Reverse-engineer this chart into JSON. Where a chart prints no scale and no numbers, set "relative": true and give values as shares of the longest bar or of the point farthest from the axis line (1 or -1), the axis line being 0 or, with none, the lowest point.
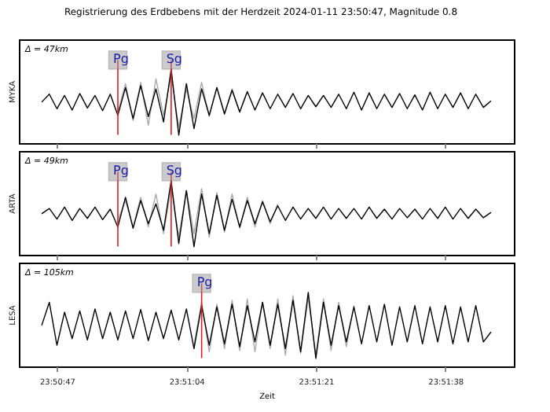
{
  "chart_data": [
    {
      "type": "line",
      "title": "Registrierung des Erdbebens mit der Herdzeit 2024-01-11 23:50:47, Magnitude 0.8",
      "ylabel": "MYKA",
      "relative": true,
      "grid": false,
      "tick_labels": false,
      "annotations": [
        "Δ = 47km"
      ],
      "xlim": [
        "2024-01-11T23:50:42",
        "2024-01-11T23:51:47"
      ],
      "xticks": [
        {
          "value": "2024-01-11T23:50:47",
          "label": null
        },
        {
          "value": "2024-01-11T23:51:04",
          "label": null
        },
        {
          "value": "2024-01-11T23:51:21",
          "label": null
        },
        {
          "value": "2024-01-11T23:51:38",
          "label": null
        }
      ],
      "ref_lines": [
        {
          "axis": "x",
          "value": "2024-01-11T23:50:55",
          "label": "Pg",
          "color": "#e41a1c"
        },
        {
          "axis": "x",
          "value": "2024-01-11T23:51:02",
          "label": "Sg",
          "color": "#e41a1c"
        }
      ],
      "series": [
        {
          "color": "#aaaaaa",
          "values": [
            null,
            null,
            null,
            null,
            null,
            null,
            null,
            null,
            null,
            null,
            0.35,
            0.78,
            0.22,
            0.8,
            0.15,
            0.85,
            0.3,
            0.9,
            0.12,
            0.7,
            0.25,
            0.8,
            0.28,
            0.72,
            0.33,
            0.7,
            0.35,
            0.66,
            null,
            null,
            null,
            null,
            null,
            null,
            null,
            null,
            null,
            null,
            null,
            null,
            null,
            null,
            null,
            null,
            null,
            null,
            null,
            null,
            null,
            null,
            null,
            null,
            null,
            null,
            null,
            null,
            null,
            null,
            null,
            null
          ]
        },
        {
          "color": "#000000",
          "values": [
            0.5,
            0.62,
            0.4,
            0.6,
            0.38,
            0.63,
            0.41,
            0.6,
            0.37,
            0.62,
            0.3,
            0.72,
            0.25,
            0.75,
            0.28,
            0.7,
            0.2,
            1.0,
            0.0,
            0.78,
            0.1,
            0.7,
            0.3,
            0.72,
            0.32,
            0.68,
            0.35,
            0.66,
            0.38,
            0.64,
            0.4,
            0.62,
            0.42,
            0.63,
            0.4,
            0.6,
            0.43,
            0.6,
            0.42,
            0.62,
            0.4,
            0.65,
            0.38,
            0.64,
            0.4,
            0.62,
            0.42,
            0.63,
            0.4,
            0.61,
            0.38,
            0.65,
            0.4,
            0.62,
            0.42,
            0.64,
            0.4,
            0.62,
            0.42,
            0.52
          ]
        }
      ],
      "x": [
        "2024-01-11T23:50:45",
        "2024-01-11T23:50:46",
        "2024-01-11T23:50:47",
        "2024-01-11T23:50:48",
        "2024-01-11T23:50:49",
        "2024-01-11T23:50:50",
        "2024-01-11T23:50:51",
        "2024-01-11T23:50:52",
        "2024-01-11T23:50:53",
        "2024-01-11T23:50:54",
        "2024-01-11T23:50:55",
        "2024-01-11T23:50:56",
        "2024-01-11T23:50:57",
        "2024-01-11T23:50:58",
        "2024-01-11T23:50:59",
        "2024-01-11T23:51:00",
        "2024-01-11T23:51:01",
        "2024-01-11T23:51:02",
        "2024-01-11T23:51:03",
        "2024-01-11T23:51:04",
        "2024-01-11T23:51:05",
        "2024-01-11T23:51:06",
        "2024-01-11T23:51:07",
        "2024-01-11T23:51:08",
        "2024-01-11T23:51:09",
        "2024-01-11T23:51:10",
        "2024-01-11T23:51:11",
        "2024-01-11T23:51:12",
        "2024-01-11T23:51:13",
        "2024-01-11T23:51:14",
        "2024-01-11T23:51:15",
        "2024-01-11T23:51:16",
        "2024-01-11T23:51:17",
        "2024-01-11T23:51:18",
        "2024-01-11T23:51:19",
        "2024-01-11T23:51:20",
        "2024-01-11T23:51:21",
        "2024-01-11T23:51:22",
        "2024-01-11T23:51:23",
        "2024-01-11T23:51:24",
        "2024-01-11T23:51:25",
        "2024-01-11T23:51:26",
        "2024-01-11T23:51:27",
        "2024-01-11T23:51:28",
        "2024-01-11T23:51:29",
        "2024-01-11T23:51:30",
        "2024-01-11T23:51:31",
        "2024-01-11T23:51:32",
        "2024-01-11T23:51:33",
        "2024-01-11T23:51:34",
        "2024-01-11T23:51:35",
        "2024-01-11T23:51:36",
        "2024-01-11T23:51:37",
        "2024-01-11T23:51:38",
        "2024-01-11T23:51:39",
        "2024-01-11T23:51:40",
        "2024-01-11T23:51:41",
        "2024-01-11T23:51:42",
        "2024-01-11T23:51:43",
        "2024-01-11T23:51:44"
      ]
    },
    {
      "type": "line",
      "ylabel": "ARTA",
      "relative": true,
      "grid": false,
      "tick_labels": false,
      "annotations": [
        "Δ = 49km"
      ],
      "xlim": [
        "2024-01-11T23:50:42",
        "2024-01-11T23:51:47"
      ],
      "xticks": [
        {
          "value": "2024-01-11T23:50:47",
          "label": null
        },
        {
          "value": "2024-01-11T23:51:04",
          "label": null
        },
        {
          "value": "2024-01-11T23:51:21",
          "label": null
        },
        {
          "value": "2024-01-11T23:51:38",
          "label": null
        }
      ],
      "ref_lines": [
        {
          "axis": "x",
          "value": "2024-01-11T23:50:55",
          "label": "Pg",
          "color": "#e41a1c"
        },
        {
          "axis": "x",
          "value": "2024-01-11T23:51:02",
          "label": "Sg",
          "color": "#e41a1c"
        }
      ],
      "series": [
        {
          "color": "#aaaaaa",
          "values": [
            null,
            null,
            null,
            null,
            null,
            null,
            null,
            null,
            null,
            null,
            0.4,
            0.7,
            0.3,
            0.75,
            0.3,
            0.8,
            0.2,
            0.9,
            0.15,
            0.85,
            0.2,
            0.88,
            0.15,
            0.82,
            0.22,
            0.8,
            0.28,
            0.75,
            0.3,
            0.7,
            0.35,
            0.65,
            null,
            null,
            null,
            null,
            null,
            null,
            null,
            null,
            null,
            null,
            null,
            null,
            null,
            null,
            null,
            null,
            null,
            null,
            null,
            null,
            null,
            null,
            null,
            null,
            null,
            null,
            null,
            null
          ]
        },
        {
          "color": "#000000",
          "values": [
            0.5,
            0.58,
            0.42,
            0.6,
            0.4,
            0.58,
            0.43,
            0.6,
            0.41,
            0.57,
            0.3,
            0.75,
            0.28,
            0.7,
            0.35,
            0.65,
            0.25,
            1.0,
            0.05,
            0.85,
            0.0,
            0.8,
            0.2,
            0.78,
            0.25,
            0.72,
            0.3,
            0.7,
            0.35,
            0.68,
            0.38,
            0.62,
            0.4,
            0.6,
            0.42,
            0.58,
            0.43,
            0.6,
            0.42,
            0.58,
            0.43,
            0.58,
            0.42,
            0.6,
            0.43,
            0.57,
            0.42,
            0.58,
            0.44,
            0.57,
            0.42,
            0.58,
            0.43,
            0.6,
            0.42,
            0.58,
            0.43,
            0.57,
            0.44,
            0.52
          ]
        }
      ],
      "x": [
        "2024-01-11T23:50:45",
        "2024-01-11T23:50:46",
        "2024-01-11T23:50:47",
        "2024-01-11T23:50:48",
        "2024-01-11T23:50:49",
        "2024-01-11T23:50:50",
        "2024-01-11T23:50:51",
        "2024-01-11T23:50:52",
        "2024-01-11T23:50:53",
        "2024-01-11T23:50:54",
        "2024-01-11T23:50:55",
        "2024-01-11T23:50:56",
        "2024-01-11T23:50:57",
        "2024-01-11T23:50:58",
        "2024-01-11T23:50:59",
        "2024-01-11T23:51:00",
        "2024-01-11T23:51:01",
        "2024-01-11T23:51:02",
        "2024-01-11T23:51:03",
        "2024-01-11T23:51:04",
        "2024-01-11T23:51:05",
        "2024-01-11T23:51:06",
        "2024-01-11T23:51:07",
        "2024-01-11T23:51:08",
        "2024-01-11T23:51:09",
        "2024-01-11T23:51:10",
        "2024-01-11T23:51:11",
        "2024-01-11T23:51:12",
        "2024-01-11T23:51:13",
        "2024-01-11T23:51:14",
        "2024-01-11T23:51:15",
        "2024-01-11T23:51:16",
        "2024-01-11T23:51:17",
        "2024-01-11T23:51:18",
        "2024-01-11T23:51:19",
        "2024-01-11T23:51:20",
        "2024-01-11T23:51:21",
        "2024-01-11T23:51:22",
        "2024-01-11T23:51:23",
        "2024-01-11T23:51:24",
        "2024-01-11T23:51:25",
        "2024-01-11T23:51:26",
        "2024-01-11T23:51:27",
        "2024-01-11T23:51:28",
        "2024-01-11T23:51:29",
        "2024-01-11T23:51:30",
        "2024-01-11T23:51:31",
        "2024-01-11T23:51:32",
        "2024-01-11T23:51:33",
        "2024-01-11T23:51:34",
        "2024-01-11T23:51:35",
        "2024-01-11T23:51:36",
        "2024-01-11T23:51:37",
        "2024-01-11T23:51:38",
        "2024-01-11T23:51:39",
        "2024-01-11T23:51:40",
        "2024-01-11T23:51:41",
        "2024-01-11T23:51:42",
        "2024-01-11T23:51:43",
        "2024-01-11T23:51:44"
      ]
    },
    {
      "type": "line",
      "ylabel": "LESA",
      "xlabel": "Zeit",
      "relative": true,
      "grid": false,
      "tick_labels": "x",
      "annotations": [
        "Δ = 105km"
      ],
      "xlim": [
        "2024-01-11T23:50:42",
        "2024-01-11T23:51:47"
      ],
      "xticks": [
        {
          "value": "2024-01-11T23:50:47",
          "label": "23:50:47"
        },
        {
          "value": "2024-01-11T23:51:04",
          "label": "23:51:04"
        },
        {
          "value": "2024-01-11T23:51:21",
          "label": "23:51:21"
        },
        {
          "value": "2024-01-11T23:51:38",
          "label": "23:51:38"
        }
      ],
      "ref_lines": [
        {
          "axis": "x",
          "value": "2024-01-11T23:51:06",
          "label": "Pg",
          "color": "#e41a1c"
        }
      ],
      "series": [
        {
          "color": "#aaaaaa",
          "values": [
            null,
            null,
            null,
            null,
            null,
            null,
            null,
            null,
            null,
            null,
            null,
            null,
            null,
            null,
            null,
            null,
            null,
            null,
            null,
            null,
            0.2,
            0.85,
            0.1,
            0.82,
            0.15,
            0.88,
            0.12,
            0.9,
            0.1,
            0.85,
            0.15,
            0.9,
            0.05,
            0.95,
            0.08,
            0.92,
            0.05,
            0.9,
            0.12,
            0.85,
            0.18,
            0.8,
            null,
            null,
            null,
            null,
            null,
            null,
            null,
            null,
            null,
            null,
            null,
            null,
            null,
            null,
            null,
            null,
            null,
            null
          ]
        },
        {
          "color": "#000000",
          "values": [
            0.5,
            0.85,
            0.2,
            0.7,
            0.3,
            0.72,
            0.28,
            0.75,
            0.3,
            0.7,
            0.28,
            0.72,
            0.3,
            0.74,
            0.27,
            0.7,
            0.3,
            0.73,
            0.28,
            0.75,
            0.15,
            0.8,
            0.2,
            0.78,
            0.22,
            0.82,
            0.18,
            0.8,
            0.25,
            0.85,
            0.2,
            0.82,
            0.15,
            0.88,
            0.1,
            1.0,
            0.0,
            0.85,
            0.2,
            0.8,
            0.25,
            0.78,
            0.22,
            0.8,
            0.25,
            0.82,
            0.2,
            0.78,
            0.25,
            0.8,
            0.22,
            0.78,
            0.25,
            0.8,
            0.22,
            0.78,
            0.25,
            0.8,
            0.25,
            0.4
          ]
        }
      ],
      "x": [
        "2024-01-11T23:50:45",
        "2024-01-11T23:50:46",
        "2024-01-11T23:50:47",
        "2024-01-11T23:50:48",
        "2024-01-11T23:50:49",
        "2024-01-11T23:50:50",
        "2024-01-11T23:50:51",
        "2024-01-11T23:50:52",
        "2024-01-11T23:50:53",
        "2024-01-11T23:50:54",
        "2024-01-11T23:50:55",
        "2024-01-11T23:50:56",
        "2024-01-11T23:50:57",
        "2024-01-11T23:50:58",
        "2024-01-11T23:50:59",
        "2024-01-11T23:51:00",
        "2024-01-11T23:51:01",
        "2024-01-11T23:51:02",
        "2024-01-11T23:51:03",
        "2024-01-11T23:51:04",
        "2024-01-11T23:51:05",
        "2024-01-11T23:51:06",
        "2024-01-11T23:51:07",
        "2024-01-11T23:51:08",
        "2024-01-11T23:51:09",
        "2024-01-11T23:51:10",
        "2024-01-11T23:51:11",
        "2024-01-11T23:51:12",
        "2024-01-11T23:51:13",
        "2024-01-11T23:51:14",
        "2024-01-11T23:51:15",
        "2024-01-11T23:51:16",
        "2024-01-11T23:51:17",
        "2024-01-11T23:51:18",
        "2024-01-11T23:51:19",
        "2024-01-11T23:51:20",
        "2024-01-11T23:51:21",
        "2024-01-11T23:51:22",
        "2024-01-11T23:51:23",
        "2024-01-11T23:51:24",
        "2024-01-11T23:51:25",
        "2024-01-11T23:51:26",
        "2024-01-11T23:51:27",
        "2024-01-11T23:51:28",
        "2024-01-11T23:51:29",
        "2024-01-11T23:51:30",
        "2024-01-11T23:51:31",
        "2024-01-11T23:51:32",
        "2024-01-11T23:51:33",
        "2024-01-11T23:51:34",
        "2024-01-11T23:51:35",
        "2024-01-11T23:51:36",
        "2024-01-11T23:51:37",
        "2024-01-11T23:51:38",
        "2024-01-11T23:51:39",
        "2024-01-11T23:51:40",
        "2024-01-11T23:51:41",
        "2024-01-11T23:51:42",
        "2024-01-11T23:51:43",
        "2024-01-11T23:51:44"
      ]
    }
  ]
}
